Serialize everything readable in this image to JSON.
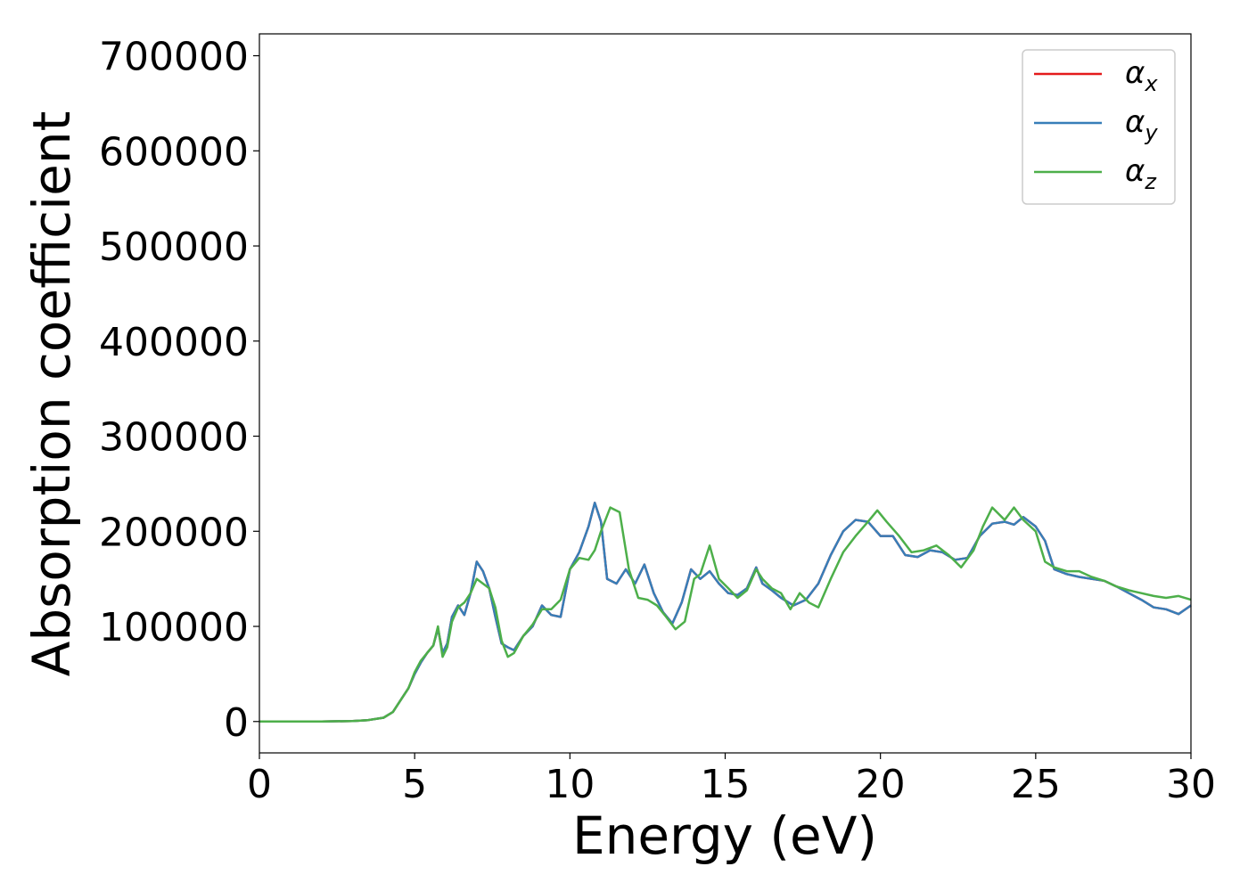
{
  "chart_data": {
    "type": "line",
    "title": "",
    "xlabel": "Energy (eV)",
    "ylabel": "Absorption coefficient",
    "xlim": [
      0,
      30
    ],
    "ylim": [
      -33000,
      723000
    ],
    "xticks": [
      0,
      5,
      10,
      15,
      20,
      25,
      30
    ],
    "yticks": [
      0,
      100000,
      200000,
      300000,
      400000,
      500000,
      600000,
      700000
    ],
    "grid": false,
    "legend_position": "top-right",
    "series": [
      {
        "name": "α",
        "subscript": "x",
        "color": "#e41a1c",
        "x": [
          0,
          1,
          2,
          3,
          3.5,
          4,
          4.3,
          4.6,
          4.8,
          5,
          5.2,
          5.4,
          5.6,
          5.75,
          5.9,
          6.05,
          6.2,
          6.4,
          6.6,
          6.8,
          7,
          7.2,
          7.4,
          7.6,
          7.8,
          8,
          8.2,
          8.5,
          8.8,
          9.1,
          9.4,
          9.7,
          10,
          10.3,
          10.6,
          10.8,
          11,
          11.2,
          11.5,
          11.8,
          12.1,
          12.4,
          12.7,
          13,
          13.3,
          13.6,
          13.9,
          14.2,
          14.5,
          14.8,
          15.1,
          15.4,
          15.7,
          16,
          16.2,
          16.5,
          16.8,
          17.2,
          17.6,
          18,
          18.4,
          18.8,
          19.2,
          19.6,
          20,
          20.4,
          20.8,
          21.2,
          21.6,
          22,
          22.4,
          22.8,
          23.2,
          23.6,
          24,
          24.3,
          24.6,
          25,
          25.3,
          25.6,
          26,
          26.4,
          26.8,
          27.2,
          27.6,
          28,
          28.4,
          28.8,
          29.2,
          29.6,
          30
        ],
        "y": [
          0,
          0,
          0,
          500,
          1500,
          4000,
          10000,
          25000,
          35000,
          50000,
          62000,
          72000,
          80000,
          98000,
          72000,
          82000,
          110000,
          122000,
          112000,
          135000,
          168000,
          158000,
          140000,
          110000,
          82000,
          78000,
          75000,
          90000,
          100000,
          122000,
          112000,
          110000,
          160000,
          178000,
          205000,
          230000,
          210000,
          150000,
          145000,
          160000,
          145000,
          165000,
          135000,
          115000,
          103000,
          125000,
          160000,
          150000,
          158000,
          145000,
          135000,
          133000,
          140000,
          162000,
          145000,
          138000,
          130000,
          122000,
          128000,
          145000,
          175000,
          200000,
          212000,
          210000,
          195000,
          195000,
          175000,
          173000,
          180000,
          178000,
          170000,
          172000,
          195000,
          208000,
          210000,
          207000,
          215000,
          205000,
          190000,
          160000,
          155000,
          152000,
          150000,
          148000,
          142000,
          135000,
          128000,
          120000,
          118000,
          113000,
          122000
        ]
      },
      {
        "name": "α",
        "subscript": "y",
        "color": "#377eb8",
        "x": [
          0,
          1,
          2,
          3,
          3.5,
          4,
          4.3,
          4.6,
          4.8,
          5,
          5.2,
          5.4,
          5.6,
          5.75,
          5.9,
          6.05,
          6.2,
          6.4,
          6.6,
          6.8,
          7,
          7.2,
          7.4,
          7.6,
          7.8,
          8,
          8.2,
          8.5,
          8.8,
          9.1,
          9.4,
          9.7,
          10,
          10.3,
          10.6,
          10.8,
          11,
          11.2,
          11.5,
          11.8,
          12.1,
          12.4,
          12.7,
          13,
          13.3,
          13.6,
          13.9,
          14.2,
          14.5,
          14.8,
          15.1,
          15.4,
          15.7,
          16,
          16.2,
          16.5,
          16.8,
          17.2,
          17.6,
          18,
          18.4,
          18.8,
          19.2,
          19.6,
          20,
          20.4,
          20.8,
          21.2,
          21.6,
          22,
          22.4,
          22.8,
          23.2,
          23.6,
          24,
          24.3,
          24.6,
          25,
          25.3,
          25.6,
          26,
          26.4,
          26.8,
          27.2,
          27.6,
          28,
          28.4,
          28.8,
          29.2,
          29.6,
          30
        ],
        "y": [
          0,
          0,
          0,
          500,
          1500,
          4000,
          10000,
          25000,
          35000,
          50000,
          62000,
          72000,
          80000,
          98000,
          72000,
          82000,
          110000,
          122000,
          112000,
          135000,
          168000,
          158000,
          140000,
          110000,
          82000,
          78000,
          75000,
          90000,
          100000,
          122000,
          112000,
          110000,
          160000,
          178000,
          205000,
          230000,
          210000,
          150000,
          145000,
          160000,
          145000,
          165000,
          135000,
          115000,
          103000,
          125000,
          160000,
          150000,
          158000,
          145000,
          135000,
          133000,
          140000,
          162000,
          145000,
          138000,
          130000,
          122000,
          128000,
          145000,
          175000,
          200000,
          212000,
          210000,
          195000,
          195000,
          175000,
          173000,
          180000,
          178000,
          170000,
          172000,
          195000,
          208000,
          210000,
          207000,
          215000,
          205000,
          190000,
          160000,
          155000,
          152000,
          150000,
          148000,
          142000,
          135000,
          128000,
          120000,
          118000,
          113000,
          122000
        ]
      },
      {
        "name": "α",
        "subscript": "z",
        "color": "#4daf4a",
        "x": [
          0,
          1,
          2,
          3,
          3.5,
          4,
          4.3,
          4.6,
          4.8,
          5,
          5.2,
          5.4,
          5.6,
          5.75,
          5.9,
          6.05,
          6.2,
          6.4,
          6.6,
          6.8,
          7,
          7.2,
          7.4,
          7.6,
          7.8,
          8,
          8.2,
          8.5,
          8.8,
          9.1,
          9.4,
          9.7,
          10,
          10.3,
          10.6,
          10.8,
          11,
          11.3,
          11.6,
          11.9,
          12.2,
          12.5,
          12.8,
          13.1,
          13.4,
          13.7,
          14,
          14.2,
          14.5,
          14.8,
          15.1,
          15.4,
          15.7,
          16,
          16.2,
          16.5,
          16.8,
          17.1,
          17.4,
          17.7,
          18,
          18.4,
          18.8,
          19.2,
          19.6,
          19.9,
          20.2,
          20.6,
          21,
          21.4,
          21.8,
          22.2,
          22.6,
          23,
          23.3,
          23.6,
          24,
          24.3,
          24.6,
          25,
          25.3,
          25.6,
          26,
          26.4,
          26.8,
          27.2,
          27.6,
          28,
          28.4,
          28.8,
          29.2,
          29.6,
          30
        ],
        "y": [
          0,
          0,
          0,
          500,
          1500,
          4000,
          10000,
          25000,
          35000,
          52000,
          64000,
          72000,
          80000,
          100000,
          68000,
          78000,
          105000,
          120000,
          125000,
          135000,
          150000,
          145000,
          140000,
          120000,
          85000,
          68000,
          72000,
          90000,
          102000,
          118000,
          118000,
          128000,
          160000,
          172000,
          170000,
          180000,
          200000,
          225000,
          220000,
          160000,
          130000,
          128000,
          122000,
          110000,
          97000,
          105000,
          150000,
          155000,
          185000,
          150000,
          140000,
          130000,
          138000,
          160000,
          150000,
          140000,
          135000,
          118000,
          135000,
          125000,
          120000,
          150000,
          178000,
          195000,
          210000,
          222000,
          210000,
          195000,
          178000,
          180000,
          185000,
          175000,
          162000,
          180000,
          205000,
          225000,
          212000,
          225000,
          212000,
          200000,
          168000,
          162000,
          158000,
          158000,
          152000,
          148000,
          142000,
          138000,
          135000,
          132000,
          130000,
          132000,
          128000
        ]
      }
    ]
  }
}
